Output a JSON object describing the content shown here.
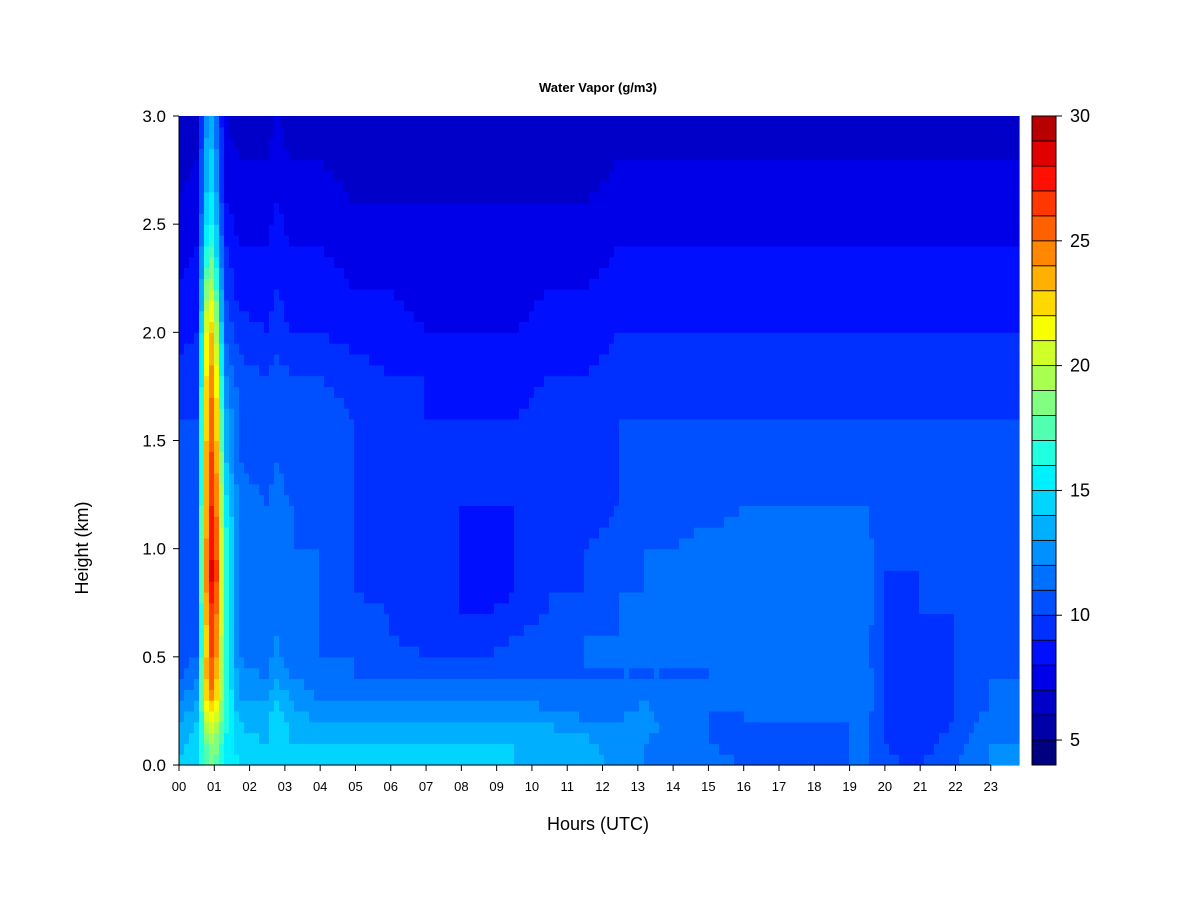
{
  "chart_data": {
    "type": "heatmap",
    "title": "Water Vapor (g/m3)",
    "xlabel": "Hours (UTC)",
    "ylabel": "Height (km)",
    "x_ticks": [
      "00",
      "01",
      "02",
      "03",
      "04",
      "05",
      "06",
      "07",
      "08",
      "09",
      "10",
      "11",
      "12",
      "13",
      "14",
      "15",
      "16",
      "17",
      "18",
      "19",
      "20",
      "21",
      "22",
      "23"
    ],
    "xlim": [
      0,
      23.8
    ],
    "y_ticks": [
      "0.0",
      "0.5",
      "1.0",
      "1.5",
      "2.0",
      "2.5",
      "3.0"
    ],
    "ylim": [
      0,
      3.0
    ],
    "colorbar": {
      "min": 4,
      "max": 30,
      "step": 1,
      "tick_values": [
        5,
        10,
        15,
        20,
        25,
        30
      ],
      "tick_labels": [
        "5",
        "10",
        "15",
        "20",
        "25",
        "30"
      ],
      "colors": [
        "#000080",
        "#0000a8",
        "#0000c8",
        "#0000e8",
        "#0010ff",
        "#0030ff",
        "#0050ff",
        "#0070ff",
        "#0090ff",
        "#00b0ff",
        "#00d4ff",
        "#00f0ff",
        "#20ffe0",
        "#50ffb0",
        "#80ff80",
        "#a8ff50",
        "#d0ff28",
        "#f8ff00",
        "#ffd800",
        "#ffb000",
        "#ff8800",
        "#ff6000",
        "#ff3800",
        "#ff1000",
        "#e00000",
        "#b80000"
      ]
    },
    "legend": "colorbar-right",
    "grid": false,
    "profiles": {
      "heights_km": [
        0.0,
        0.1,
        0.2,
        0.3,
        0.4,
        0.5,
        0.6,
        0.7,
        0.8,
        0.9,
        1.0,
        1.2,
        1.4,
        1.6,
        1.8,
        2.0,
        2.2,
        2.4,
        2.6,
        2.8,
        3.0
      ],
      "hours": [
        0,
        0.5,
        0.85,
        1.0,
        1.3,
        1.7,
        2.5,
        2.75,
        3.2,
        4.0,
        5.0,
        6.0,
        7.0,
        8.0,
        8.7,
        9.5,
        10.5,
        11.5,
        12.5,
        13.2,
        14.0,
        15.0,
        16.0,
        17.0,
        18.0,
        19.0,
        19.5,
        20.0,
        20.5,
        21.0,
        22.0,
        23.0,
        23.8
      ],
      "values": [
        [
          14.0,
          13.5,
          13.0,
          12.0,
          11.0,
          10.5,
          10.0,
          10.0,
          10.0,
          10.0,
          10.0,
          10.0,
          10.0,
          10.0,
          9.5,
          8.5,
          8.0,
          7.5,
          7.0,
          6.5,
          6.0
        ],
        [
          15.0,
          14.5,
          14.0,
          13.0,
          12.0,
          11.0,
          10.5,
          10.5,
          10.5,
          10.5,
          10.5,
          10.5,
          10.5,
          10.0,
          10.0,
          9.0,
          8.5,
          8.0,
          7.5,
          7.0,
          6.5
        ],
        [
          18.0,
          19.0,
          21.0,
          24.0,
          26.0,
          26.0,
          26.0,
          26.5,
          27.5,
          28.0,
          27.5,
          27.0,
          26.5,
          26.0,
          25.0,
          24.0,
          21.0,
          18.0,
          16.0,
          15.0,
          14.0
        ],
        [
          18.0,
          19.0,
          21.0,
          23.0,
          25.0,
          26.0,
          26.5,
          27.0,
          28.0,
          28.5,
          28.0,
          27.0,
          26.0,
          25.0,
          24.0,
          22.0,
          19.0,
          16.0,
          14.5,
          13.5,
          12.5
        ],
        [
          16.0,
          16.0,
          16.5,
          17.0,
          17.0,
          17.0,
          17.0,
          17.0,
          17.5,
          17.5,
          17.0,
          16.0,
          14.5,
          13.5,
          12.0,
          11.0,
          10.0,
          9.0,
          8.0,
          7.5,
          7.0
        ],
        [
          15.0,
          14.5,
          14.0,
          13.0,
          12.5,
          12.0,
          12.0,
          12.0,
          12.0,
          12.0,
          12.0,
          11.5,
          11.0,
          11.0,
          10.5,
          9.5,
          8.5,
          8.0,
          7.5,
          7.0,
          6.5
        ],
        [
          14.0,
          14.0,
          13.5,
          13.0,
          12.0,
          11.5,
          11.0,
          11.0,
          11.0,
          11.0,
          11.0,
          11.0,
          10.5,
          10.5,
          10.0,
          9.0,
          8.5,
          8.0,
          7.5,
          7.0,
          6.5
        ],
        [
          15.0,
          15.0,
          15.0,
          14.0,
          13.0,
          12.5,
          12.0,
          12.0,
          12.0,
          12.0,
          12.0,
          11.5,
          11.0,
          11.0,
          10.5,
          9.5,
          9.0,
          8.5,
          8.0,
          7.5,
          7.0
        ],
        [
          14.0,
          14.0,
          13.5,
          13.0,
          12.0,
          11.0,
          11.0,
          11.0,
          11.0,
          11.0,
          11.0,
          11.0,
          10.5,
          10.5,
          10.0,
          9.0,
          8.5,
          8.0,
          7.5,
          7.0,
          6.5
        ],
        [
          14.0,
          14.0,
          13.0,
          12.0,
          11.5,
          11.0,
          11.0,
          11.0,
          11.0,
          11.0,
          11.0,
          10.5,
          10.5,
          10.5,
          10.0,
          9.0,
          8.5,
          8.0,
          7.5,
          7.0,
          6.5
        ],
        [
          14.0,
          14.0,
          13.0,
          12.0,
          11.0,
          11.0,
          10.5,
          10.5,
          10.0,
          10.0,
          10.0,
          10.0,
          10.0,
          10.0,
          9.5,
          8.5,
          8.0,
          7.5,
          7.0,
          6.5,
          6.0
        ],
        [
          14.0,
          14.0,
          13.0,
          12.0,
          11.0,
          10.5,
          10.0,
          10.0,
          9.5,
          9.5,
          9.5,
          9.5,
          9.5,
          9.5,
          9.0,
          8.5,
          8.0,
          7.5,
          7.0,
          6.5,
          6.0
        ],
        [
          14.0,
          14.0,
          13.0,
          12.0,
          11.0,
          10.0,
          9.5,
          9.5,
          9.5,
          9.0,
          9.0,
          9.0,
          9.0,
          9.0,
          9.0,
          8.0,
          7.5,
          7.5,
          7.0,
          6.5,
          6.0
        ],
        [
          14.0,
          14.0,
          13.0,
          12.0,
          11.0,
          10.0,
          9.5,
          9.0,
          9.0,
          9.0,
          9.0,
          9.0,
          9.0,
          9.0,
          8.5,
          8.0,
          7.5,
          7.0,
          7.0,
          6.5,
          6.0
        ],
        [
          14.0,
          14.0,
          13.0,
          12.0,
          11.0,
          10.0,
          9.5,
          9.0,
          8.5,
          8.5,
          8.5,
          9.0,
          9.0,
          9.0,
          8.5,
          8.0,
          7.5,
          7.0,
          7.0,
          6.5,
          6.0
        ],
        [
          14.0,
          14.0,
          13.0,
          12.0,
          11.0,
          10.5,
          10.0,
          9.5,
          9.0,
          9.0,
          9.0,
          9.0,
          9.0,
          9.0,
          8.5,
          8.0,
          7.5,
          7.5,
          7.0,
          6.5,
          6.0
        ],
        [
          14.0,
          13.5,
          13.0,
          11.5,
          11.0,
          10.5,
          10.5,
          10.0,
          10.0,
          9.5,
          9.5,
          9.5,
          9.5,
          9.5,
          9.0,
          8.5,
          8.0,
          7.5,
          7.0,
          6.5,
          6.0
        ],
        [
          14.0,
          13.5,
          12.0,
          11.5,
          11.0,
          11.0,
          11.0,
          10.5,
          10.0,
          10.0,
          10.0,
          9.5,
          9.5,
          9.5,
          9.0,
          8.5,
          8.0,
          7.5,
          7.0,
          6.5,
          6.0
        ],
        [
          12.5,
          12.0,
          12.0,
          11.5,
          11.0,
          11.0,
          11.0,
          11.0,
          11.0,
          10.5,
          10.5,
          10.0,
          10.0,
          10.0,
          9.5,
          9.0,
          8.5,
          8.0,
          7.5,
          7.0,
          6.5
        ],
        [
          12.0,
          12.0,
          12.5,
          12.0,
          11.0,
          11.0,
          11.0,
          11.0,
          11.0,
          11.0,
          11.0,
          10.0,
          10.0,
          10.0,
          9.5,
          9.0,
          8.5,
          8.0,
          7.5,
          7.0,
          6.5
        ],
        [
          12.0,
          11.5,
          11.5,
          11.0,
          11.0,
          11.0,
          11.0,
          11.0,
          11.0,
          11.0,
          11.0,
          10.5,
          10.0,
          10.0,
          9.5,
          9.0,
          8.5,
          8.0,
          7.5,
          7.0,
          6.5
        ],
        [
          11.5,
          11.0,
          11.0,
          11.0,
          11.0,
          11.0,
          11.0,
          11.0,
          11.0,
          11.0,
          11.5,
          10.5,
          10.0,
          10.0,
          9.5,
          9.0,
          8.5,
          8.0,
          7.5,
          7.0,
          6.5
        ],
        [
          11.0,
          10.5,
          11.0,
          11.0,
          11.5,
          11.0,
          11.0,
          11.0,
          11.0,
          11.5,
          11.5,
          11.0,
          10.5,
          10.0,
          9.5,
          9.0,
          8.5,
          8.0,
          7.5,
          7.0,
          6.5
        ],
        [
          11.0,
          10.5,
          11.0,
          11.5,
          11.5,
          11.0,
          11.0,
          11.5,
          11.5,
          11.5,
          12.0,
          11.0,
          10.5,
          10.0,
          9.5,
          9.0,
          8.5,
          8.0,
          7.5,
          7.0,
          6.5
        ],
        [
          11.0,
          10.5,
          11.0,
          11.5,
          11.5,
          11.0,
          11.0,
          11.5,
          11.5,
          11.5,
          12.0,
          11.0,
          10.5,
          10.0,
          9.5,
          9.0,
          8.5,
          8.0,
          7.5,
          7.0,
          6.5
        ],
        [
          11.0,
          11.0,
          11.0,
          11.5,
          11.5,
          11.0,
          11.0,
          11.5,
          11.5,
          11.5,
          12.0,
          11.0,
          10.5,
          10.0,
          9.5,
          9.0,
          8.5,
          8.0,
          7.5,
          7.0,
          6.5
        ],
        [
          11.0,
          11.0,
          11.0,
          11.5,
          11.5,
          11.0,
          11.0,
          11.5,
          11.5,
          11.5,
          11.5,
          11.0,
          10.5,
          10.0,
          9.5,
          9.0,
          8.5,
          8.0,
          7.5,
          7.0,
          6.5
        ],
        [
          10.5,
          10.0,
          10.0,
          10.0,
          10.0,
          10.0,
          10.0,
          10.0,
          10.0,
          10.0,
          10.0,
          10.0,
          10.0,
          10.0,
          9.5,
          9.0,
          8.5,
          8.0,
          7.5,
          7.0,
          6.5
        ],
        [
          10.0,
          9.5,
          9.5,
          9.5,
          9.5,
          9.5,
          9.5,
          9.5,
          9.5,
          10.0,
          10.0,
          10.0,
          10.0,
          10.0,
          9.5,
          9.0,
          8.5,
          8.0,
          7.5,
          7.0,
          6.5
        ],
        [
          10.0,
          9.5,
          9.5,
          9.5,
          9.5,
          9.5,
          9.5,
          10.0,
          10.0,
          10.0,
          10.0,
          10.0,
          10.0,
          10.0,
          9.5,
          9.0,
          8.5,
          8.0,
          7.5,
          7.0,
          6.5
        ],
        [
          11.0,
          10.5,
          10.0,
          10.0,
          10.0,
          10.0,
          10.0,
          10.0,
          10.0,
          10.0,
          10.5,
          10.5,
          10.5,
          10.0,
          9.5,
          9.0,
          8.5,
          8.0,
          7.5,
          7.0,
          6.5
        ],
        [
          12.0,
          12.0,
          11.5,
          11.0,
          11.0,
          10.5,
          10.0,
          10.0,
          10.0,
          10.5,
          10.5,
          10.5,
          10.5,
          10.0,
          9.5,
          9.0,
          8.5,
          8.0,
          7.5,
          7.0,
          6.5
        ],
        [
          12.0,
          12.0,
          11.5,
          11.0,
          11.0,
          10.5,
          10.5,
          10.0,
          10.0,
          10.5,
          10.5,
          10.5,
          10.5,
          10.0,
          9.5,
          9.0,
          8.5,
          8.0,
          7.5,
          7.0,
          6.5
        ]
      ]
    }
  }
}
